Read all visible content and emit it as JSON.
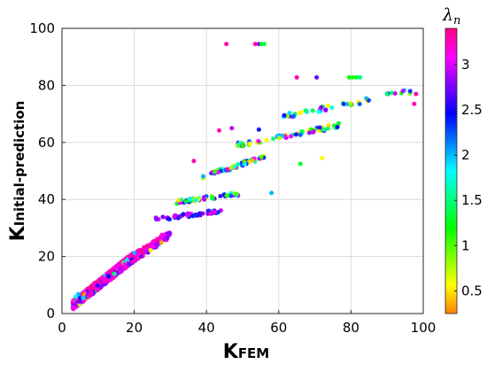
{
  "chart_data": {
    "type": "scatter",
    "xlabel": {
      "main": "K",
      "sub": "FEM"
    },
    "ylabel": {
      "main": "K",
      "sub": "Initial-prediction"
    },
    "xlim": [
      0,
      100
    ],
    "ylim": [
      0,
      100
    ],
    "xticks": [
      0,
      20,
      40,
      60,
      80,
      100
    ],
    "yticks": [
      0,
      20,
      40,
      60,
      80,
      100
    ],
    "grid": true,
    "marker": "asterisk",
    "colorbar": {
      "title": "λ",
      "title_sub": "n",
      "range": [
        0.25,
        3.4
      ],
      "ticks": [
        0.5,
        1,
        1.5,
        2,
        2.5,
        3
      ],
      "tick_labels": [
        "0.5",
        "1",
        "1.5",
        "2",
        "2.5",
        "3"
      ],
      "colormap": "hsv"
    },
    "clusters": [
      {
        "x": [
          3,
          20
        ],
        "y": [
          3,
          20
        ],
        "lambda": [
          0.3,
          3.4
        ],
        "count": 900,
        "spread": 1.6,
        "skew": "low-lambda-top"
      },
      {
        "x": [
          18,
          30
        ],
        "y": [
          18,
          28
        ],
        "lambda": [
          0.3,
          3.4
        ],
        "count": 140,
        "spread": 1.5,
        "skew": "low-lambda-top"
      },
      {
        "x": [
          26,
          44
        ],
        "y": [
          33,
          36
        ],
        "lambda": [
          2.3,
          3.3
        ],
        "count": 45,
        "spread": 0.6
      },
      {
        "x": [
          31,
          49
        ],
        "y": [
          39,
          42
        ],
        "lambda": [
          0.3,
          3.3
        ],
        "count": 50,
        "spread": 0.6
      },
      {
        "x": [
          39,
          56
        ],
        "y": [
          48,
          55
        ],
        "lambda": [
          0.3,
          3.3
        ],
        "count": 55,
        "spread": 0.7
      },
      {
        "x": [
          48,
          77
        ],
        "y": [
          59,
          66
        ],
        "lambda": [
          0.3,
          3.3
        ],
        "count": 55,
        "spread": 0.8
      },
      {
        "x": [
          61,
          97
        ],
        "y": [
          69,
          78
        ],
        "lambda": [
          0.3,
          3.3
        ],
        "count": 45,
        "spread": 0.9
      }
    ],
    "points": [
      {
        "x": 45.5,
        "y": 94.5,
        "lambda": 3.3
      },
      {
        "x": 53.5,
        "y": 94.5,
        "lambda": 3.3
      },
      {
        "x": 54.5,
        "y": 94.5,
        "lambda": 2.8
      },
      {
        "x": 55.3,
        "y": 94.5,
        "lambda": 1.2
      },
      {
        "x": 56.0,
        "y": 94.5,
        "lambda": 1.4
      },
      {
        "x": 65.0,
        "y": 82.8,
        "lambda": 3.3
      },
      {
        "x": 70.5,
        "y": 82.8,
        "lambda": 2.7
      },
      {
        "x": 79.5,
        "y": 82.8,
        "lambda": 1.2
      },
      {
        "x": 80.5,
        "y": 82.8,
        "lambda": 1.1
      },
      {
        "x": 81.5,
        "y": 82.8,
        "lambda": 1.3
      },
      {
        "x": 82.5,
        "y": 82.8,
        "lambda": 1.5
      },
      {
        "x": 98.0,
        "y": 77.0,
        "lambda": 3.3
      },
      {
        "x": 97.5,
        "y": 73.5,
        "lambda": 3.3
      },
      {
        "x": 43.5,
        "y": 64.2,
        "lambda": 3.3
      },
      {
        "x": 47.0,
        "y": 65.0,
        "lambda": 2.9
      },
      {
        "x": 54.5,
        "y": 64.5,
        "lambda": 2.4
      },
      {
        "x": 36.5,
        "y": 53.5,
        "lambda": 3.3
      },
      {
        "x": 58.0,
        "y": 42.3,
        "lambda": 2.0
      },
      {
        "x": 4.5,
        "y": 6.8,
        "lambda": 2.0
      },
      {
        "x": 3.8,
        "y": 5.9,
        "lambda": 1.8
      },
      {
        "x": 72.0,
        "y": 54.5,
        "lambda": 0.6
      },
      {
        "x": 66.0,
        "y": 52.5,
        "lambda": 1.3
      }
    ]
  }
}
